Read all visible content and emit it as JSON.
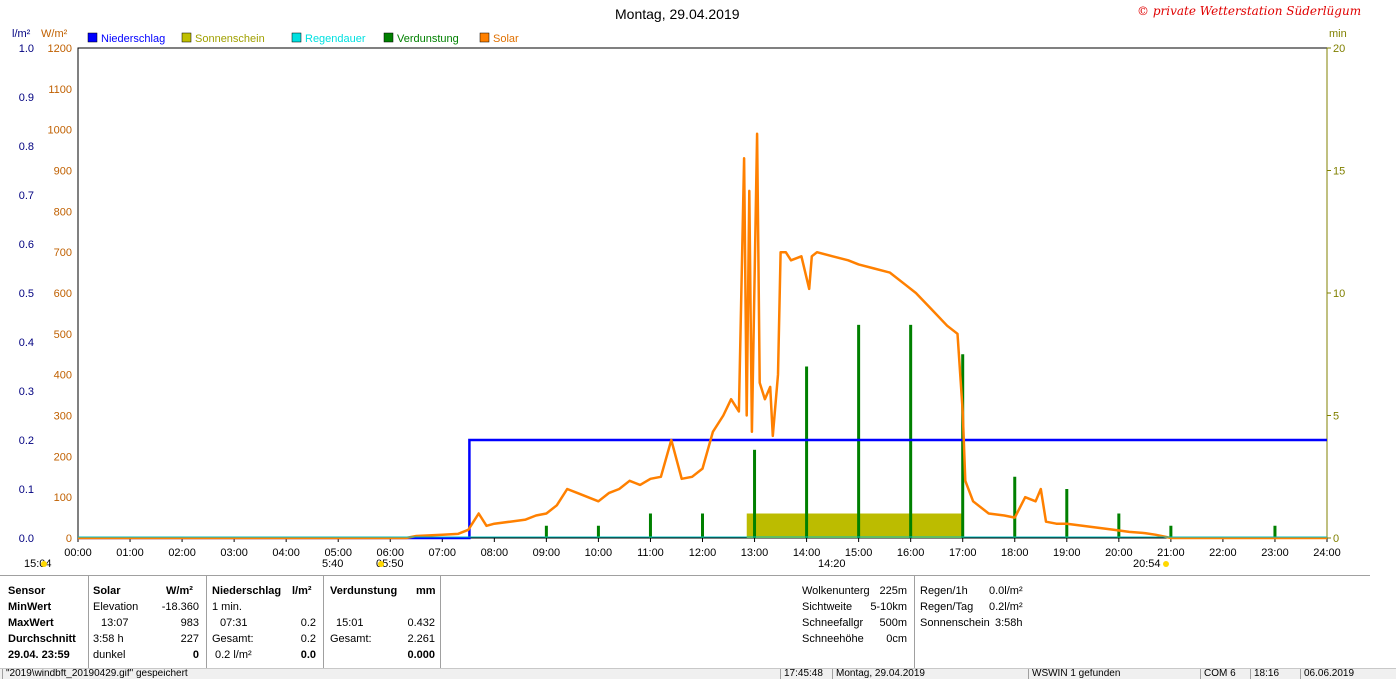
{
  "title": "Montag, 29.04.2019",
  "copyright": "© private Wetterstation Süderlügum",
  "units": {
    "left_l": "l/m²",
    "left_w": "W/m²",
    "right_min": "min"
  },
  "legend": [
    {
      "label": "Niederschlag",
      "color": "#0000ff"
    },
    {
      "label": "Sonnenschein",
      "color": "#c0c000"
    },
    {
      "label": "Regendauer",
      "color": "#00e0e0"
    },
    {
      "label": "Verdunstung",
      "color": "#008000"
    },
    {
      "label": "Solar",
      "color": "#ff8000"
    }
  ],
  "colors": {
    "precip": "#0000ff",
    "sun": "#bcbc00",
    "rain_dur": "#00c0c0",
    "evap": "#008000",
    "solar": "#ff8000",
    "left_l_axis": "#000080",
    "left_w_axis": "#c06000",
    "right_axis": "#808000"
  },
  "chart_data": {
    "type": "line",
    "title": "Montag, 29.04.2019",
    "x_ticks": [
      "00:00",
      "01:00",
      "02:00",
      "03:00",
      "04:00",
      "05:00",
      "06:00",
      "07:00",
      "08:00",
      "09:00",
      "10:00",
      "11:00",
      "12:00",
      "13:00",
      "14:00",
      "15:00",
      "16:00",
      "17:00",
      "18:00",
      "19:00",
      "20:00",
      "21:00",
      "22:00",
      "23:00",
      "24:00"
    ],
    "x_range_h": [
      0,
      24
    ],
    "y_left_precip_ticks": [
      "0.0",
      "0.1",
      "0.2",
      "0.3",
      "0.4",
      "0.5",
      "0.6",
      "0.7",
      "0.8",
      "0.9",
      "1.0"
    ],
    "y_left_precip_range": [
      0,
      1.0
    ],
    "y_left_solar_ticks": [
      "0",
      "100",
      "200",
      "300",
      "400",
      "500",
      "600",
      "700",
      "800",
      "900",
      "1000",
      "1100",
      "1200"
    ],
    "y_left_solar_range": [
      0,
      1200
    ],
    "y_right_ticks": [
      "0",
      "5",
      "10",
      "15",
      "20"
    ],
    "y_right_range": [
      0,
      20
    ],
    "grid": true,
    "series": [
      {
        "name": "Niederschlag",
        "unit": "l/m²",
        "points": [
          [
            0,
            0
          ],
          [
            7.52,
            0
          ],
          [
            7.52,
            0.2
          ],
          [
            24,
            0.2
          ]
        ]
      },
      {
        "name": "Solar",
        "unit": "W/m²",
        "points": [
          [
            0,
            0
          ],
          [
            6.3,
            0
          ],
          [
            6.5,
            5
          ],
          [
            7.0,
            8
          ],
          [
            7.3,
            10
          ],
          [
            7.5,
            20
          ],
          [
            7.7,
            60
          ],
          [
            7.85,
            30
          ],
          [
            8.0,
            35
          ],
          [
            8.3,
            40
          ],
          [
            8.6,
            45
          ],
          [
            8.8,
            55
          ],
          [
            9.0,
            60
          ],
          [
            9.2,
            80
          ],
          [
            9.4,
            120
          ],
          [
            9.6,
            110
          ],
          [
            9.8,
            100
          ],
          [
            10.0,
            90
          ],
          [
            10.2,
            110
          ],
          [
            10.4,
            120
          ],
          [
            10.6,
            140
          ],
          [
            10.8,
            130
          ],
          [
            11.0,
            145
          ],
          [
            11.2,
            150
          ],
          [
            11.4,
            240
          ],
          [
            11.6,
            145
          ],
          [
            11.8,
            150
          ],
          [
            12.0,
            170
          ],
          [
            12.2,
            260
          ],
          [
            12.4,
            300
          ],
          [
            12.55,
            340
          ],
          [
            12.7,
            310
          ],
          [
            12.8,
            930
          ],
          [
            12.85,
            300
          ],
          [
            12.9,
            850
          ],
          [
            12.95,
            260
          ],
          [
            13.05,
            990
          ],
          [
            13.1,
            380
          ],
          [
            13.2,
            340
          ],
          [
            13.3,
            370
          ],
          [
            13.35,
            250
          ],
          [
            13.45,
            400
          ],
          [
            13.5,
            700
          ],
          [
            13.6,
            700
          ],
          [
            13.7,
            680
          ],
          [
            13.9,
            690
          ],
          [
            14.05,
            610
          ],
          [
            14.1,
            690
          ],
          [
            14.2,
            700
          ],
          [
            14.5,
            690
          ],
          [
            14.8,
            680
          ],
          [
            15.0,
            670
          ],
          [
            15.3,
            660
          ],
          [
            15.6,
            650
          ],
          [
            15.9,
            620
          ],
          [
            16.1,
            600
          ],
          [
            16.4,
            560
          ],
          [
            16.7,
            520
          ],
          [
            16.9,
            500
          ],
          [
            17.0,
            310
          ],
          [
            17.05,
            140
          ],
          [
            17.2,
            90
          ],
          [
            17.5,
            60
          ],
          [
            17.8,
            55
          ],
          [
            18.0,
            50
          ],
          [
            18.2,
            100
          ],
          [
            18.4,
            90
          ],
          [
            18.5,
            120
          ],
          [
            18.6,
            40
          ],
          [
            18.8,
            35
          ],
          [
            19.0,
            35
          ],
          [
            19.3,
            30
          ],
          [
            19.6,
            25
          ],
          [
            19.9,
            20
          ],
          [
            20.2,
            15
          ],
          [
            20.5,
            12
          ],
          [
            20.7,
            8
          ],
          [
            20.9,
            3
          ],
          [
            21.0,
            0
          ],
          [
            24,
            0
          ]
        ]
      },
      {
        "name": "Sonnenschein",
        "unit": "min",
        "bar_from_h": 12.85,
        "bar_to_h": 17.0,
        "value": 1
      },
      {
        "name": "Verdunstung",
        "unit": "min",
        "spikes": [
          [
            9.0,
            0.5
          ],
          [
            10.0,
            0.5
          ],
          [
            11.0,
            1.0
          ],
          [
            12.0,
            1.0
          ],
          [
            13.0,
            3.6
          ],
          [
            14.0,
            7.0
          ],
          [
            15.0,
            8.7
          ],
          [
            16.0,
            8.7
          ],
          [
            17.0,
            7.5
          ],
          [
            18.0,
            2.5
          ],
          [
            19.0,
            2.0
          ],
          [
            20.0,
            1.0
          ],
          [
            21.0,
            0.5
          ],
          [
            23.0,
            0.5
          ]
        ]
      }
    ],
    "annotations": [
      "15:04",
      "5:40",
      "05:50",
      "14:20",
      "20:54"
    ]
  },
  "panel": {
    "sensor": {
      "h": "Sensor",
      "min": "MinWert",
      "max": "MaxWert",
      "avg": "Durchschnitt",
      "date": "29.04. 23:59"
    },
    "solar": {
      "h": "Solar",
      "unit": "W/m²",
      "r1a": "Elevation",
      "r1b": "-18.360",
      "r2a": "13:07",
      "r2b": "983",
      "r3a": "3:58 h",
      "r3b": "227",
      "r4a": "dunkel",
      "r4b": "0"
    },
    "precip": {
      "h": "Niederschlag",
      "unit": "l/m²",
      "r1": "1 min.",
      "r2a": "07:31",
      "r2b": "0.2",
      "r3a": "Gesamt:",
      "r3b": "0.2",
      "r4a": "0.2 l/m²",
      "r4b": "0.0"
    },
    "evap": {
      "h": "Verdunstung",
      "unit": "mm",
      "r2a": "15:01",
      "r2b": "0.432",
      "r3a": "Gesamt:",
      "r3b": "2.261",
      "r4b": "0.000"
    },
    "weather": {
      "r1a": "Wolkenunterg",
      "r1b": "225m",
      "r2a": "Sichtweite",
      "r2b": "5-10km",
      "r3a": "Schneefallgr",
      "r3b": "500m",
      "r4a": "Schneehöhe",
      "r4b": "0cm"
    },
    "rain": {
      "r1a": "Regen/1h",
      "r1b": "0.0l/m²",
      "r2a": "Regen/Tag",
      "r2b": "0.2l/m²",
      "r3a": "Sonnenschein",
      "r3b": "3:58h"
    }
  },
  "statusbar": {
    "file": "\"2019\\windbft_20190429.gif\" gespeichert",
    "time": "17:45:48",
    "date": "Montag, 29.04.2019",
    "device": "WSWIN 1 gefunden",
    "com": "COM 6",
    "clock": "18:16",
    "today": "06.06.2019"
  }
}
